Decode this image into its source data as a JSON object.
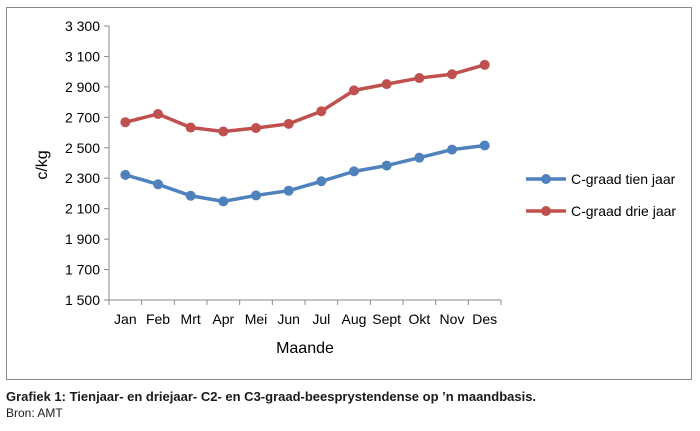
{
  "chart_data": {
    "type": "line",
    "xlabel": "Maande",
    "ylabel": "c/kg",
    "categories": [
      "Jan",
      "Feb",
      "Mrt",
      "Apr",
      "Mei",
      "Jun",
      "Jul",
      "Aug",
      "Sept",
      "Okt",
      "Nov",
      "Des"
    ],
    "ylim": [
      1500,
      3300
    ],
    "yticks": [
      1500,
      1700,
      1900,
      2100,
      2300,
      2500,
      2700,
      2900,
      3100,
      3300
    ],
    "ytick_labels": [
      "1 500",
      "1 700",
      "1 900",
      "2 100",
      "2 300",
      "2 500",
      "2 700",
      "2 900",
      "3 100",
      "3 300"
    ],
    "grid": false,
    "legend": "right",
    "series": [
      {
        "name": "C-graad tien jaar",
        "color": "#4f81bd",
        "values": [
          2322,
          2260,
          2185,
          2148,
          2187,
          2218,
          2280,
          2345,
          2383,
          2435,
          2488,
          2515
        ]
      },
      {
        "name": "C-graad drie jaar",
        "color": "#c0504d",
        "values": [
          2668,
          2722,
          2633,
          2607,
          2630,
          2657,
          2740,
          2877,
          2918,
          2958,
          2983,
          3045
        ]
      }
    ]
  },
  "caption": "Grafiek 1: Tienjaar- en driejaar- C2- en C3-graad-beesprystendense op ’n maandbasis.",
  "source": "Bron: AMT"
}
